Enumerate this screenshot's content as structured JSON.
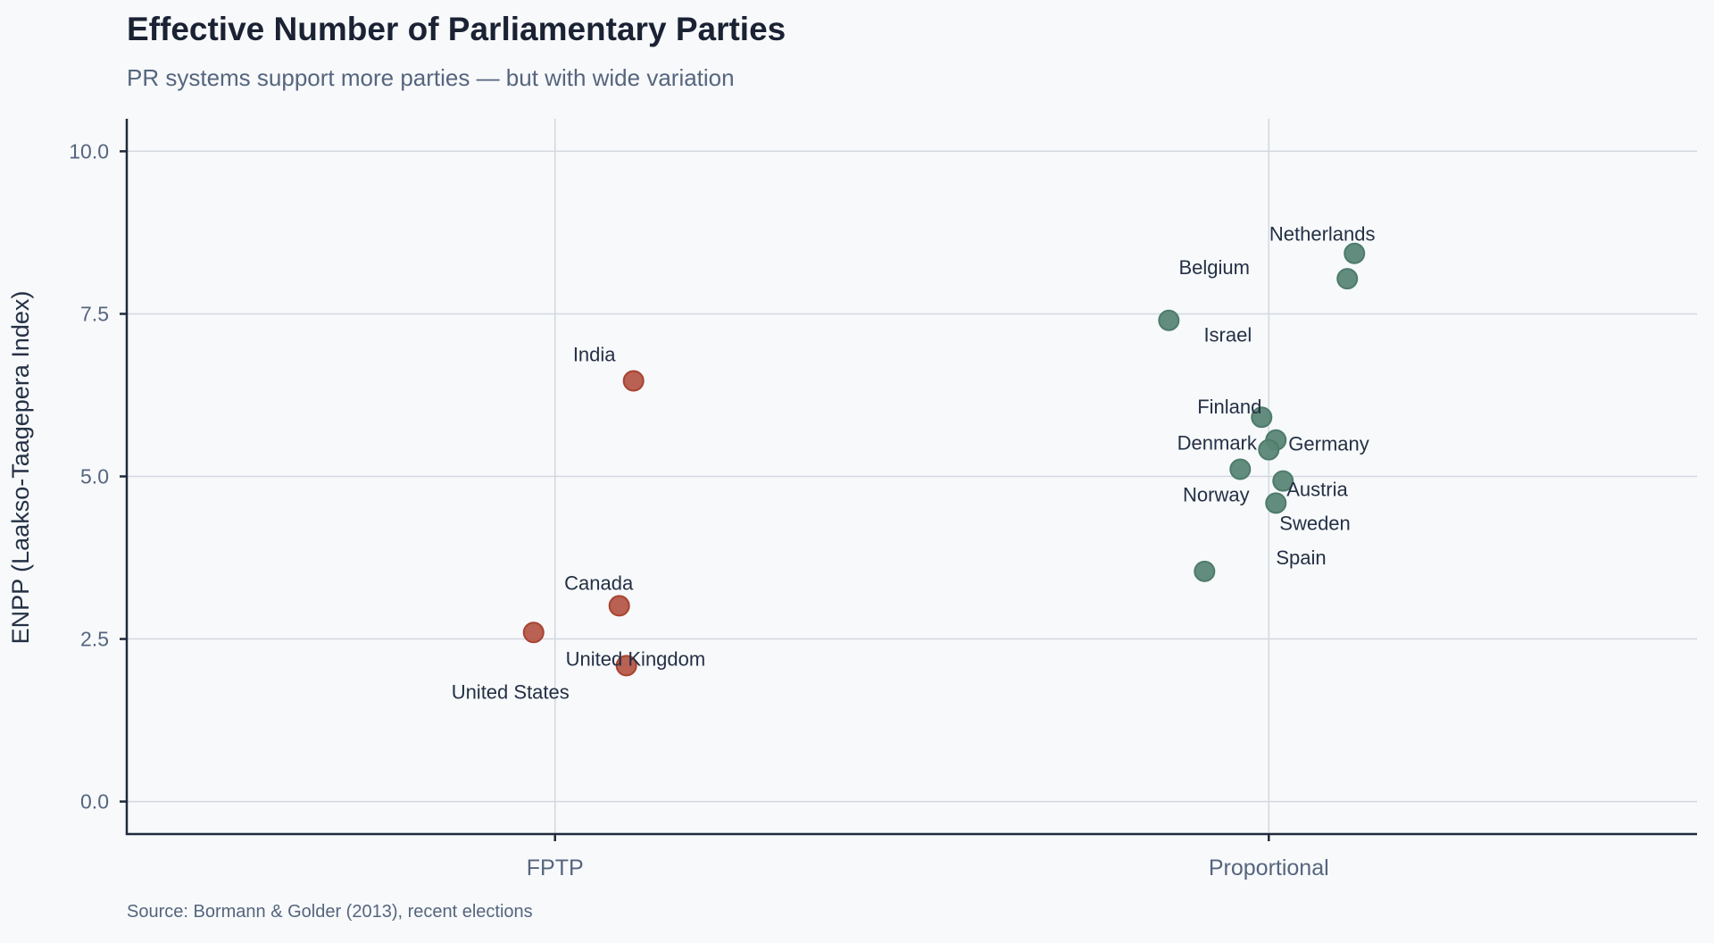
{
  "chart_data": {
    "type": "scatter",
    "title": "Effective Number of Parliamentary Parties",
    "subtitle": "PR systems support more parties — but with wide variation",
    "source": "Source: Bormann & Golder (2013), recent elections",
    "xlabel": "",
    "ylabel": "ENPP (Laakso-Taagepera Index)",
    "categories": [
      "FPTP",
      "Proportional"
    ],
    "x_range": [
      -0.6,
      1.6
    ],
    "ylim": [
      -0.5,
      10.5
    ],
    "yticks": [
      0.0,
      2.5,
      5.0,
      7.5,
      10.0
    ],
    "ytick_labels": [
      "0.0",
      "2.5",
      "5.0",
      "7.5",
      "10.0"
    ],
    "grid": true,
    "jitter_note": "points jittered horizontally within each category",
    "colors": {
      "FPTP": "#b5584a",
      "Proportional": "#5a8676"
    },
    "series": [
      {
        "name": "FPTP",
        "points": [
          {
            "label": "India",
            "x": 0.11,
            "y": 6.47
          },
          {
            "label": "Canada",
            "x": 0.09,
            "y": 3.01
          },
          {
            "label": "United States",
            "x": -0.03,
            "y": 2.6
          },
          {
            "label": "United Kingdom",
            "x": 0.1,
            "y": 2.09
          }
        ]
      },
      {
        "name": "Proportional",
        "points": [
          {
            "label": "Netherlands",
            "x": 1.12,
            "y": 8.43
          },
          {
            "label": "Belgium",
            "x": 1.11,
            "y": 8.04
          },
          {
            "label": "Israel",
            "x": 0.86,
            "y": 7.4
          },
          {
            "label": "Finland",
            "x": 0.99,
            "y": 5.91
          },
          {
            "label": "Germany",
            "x": 1.01,
            "y": 5.56
          },
          {
            "label": "Denmark",
            "x": 1.0,
            "y": 5.41
          },
          {
            "label": "Norway",
            "x": 0.96,
            "y": 5.11
          },
          {
            "label": "Austria",
            "x": 1.02,
            "y": 4.93
          },
          {
            "label": "Sweden",
            "x": 1.01,
            "y": 4.59
          },
          {
            "label": "Spain",
            "x": 0.91,
            "y": 3.54
          }
        ]
      }
    ]
  }
}
